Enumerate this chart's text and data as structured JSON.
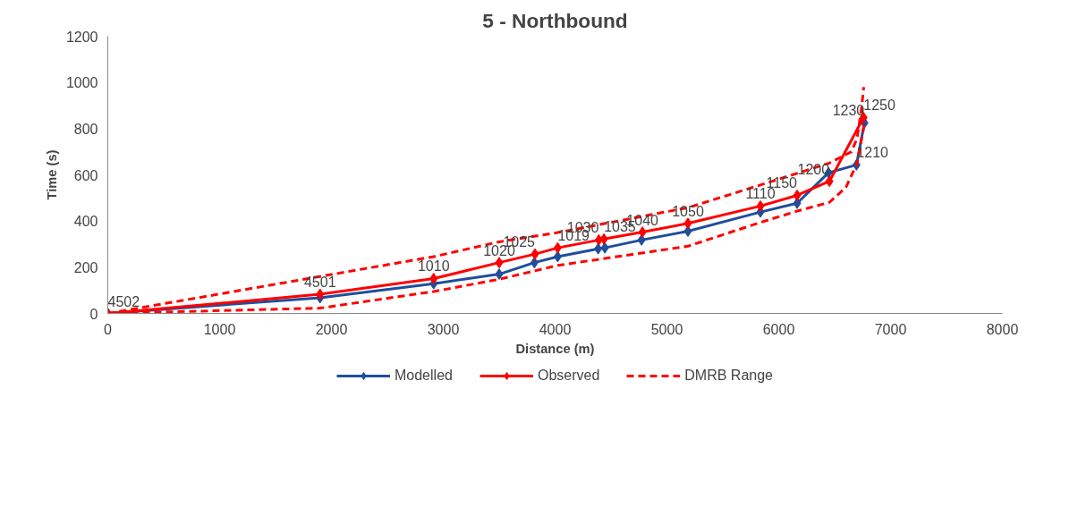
{
  "chart_data": {
    "type": "line",
    "title": "5 - Northbound",
    "xlabel": "Distance (m)",
    "ylabel": "Time (s)",
    "xlim": [
      0,
      8000
    ],
    "ylim": [
      0,
      1200
    ],
    "xticks": [
      0,
      1000,
      2000,
      3000,
      4000,
      5000,
      6000,
      7000,
      8000
    ],
    "yticks": [
      0,
      200,
      400,
      600,
      800,
      1000,
      1200
    ],
    "grid": false,
    "legend": "bottom",
    "series": [
      {
        "name": "Modelled",
        "color": "#1f4e9c",
        "marker": "diamond",
        "line_style": "solid",
        "x": [
          0,
          1898,
          2914,
          3500,
          3815,
          4023,
          4385,
          4445,
          4773,
          5188,
          5836,
          6164,
          6445,
          6695,
          6766
        ],
        "values": [
          0,
          68,
          129,
          170,
          220,
          246,
          280,
          284,
          318,
          356,
          439,
          477,
          609,
          643,
          825
        ]
      },
      {
        "name": "Observed",
        "color": "#ff0000",
        "marker": "diamond",
        "line_style": "solid",
        "x": [
          0,
          1898,
          2914,
          3500,
          3820,
          4023,
          4391,
          4437,
          4781,
          5188,
          5836,
          6164,
          6453,
          6758
        ],
        "values": [
          0,
          83,
          151,
          220,
          257,
          284,
          318,
          322,
          352,
          390,
          465,
          511,
          572,
          848
        ]
      },
      {
        "name": "DMRB Range",
        "color": "#ff0000",
        "marker": "none",
        "line_style": "dashed",
        "x": [
          0,
          1898,
          2914,
          3500,
          4023,
          5188,
          5836,
          6453,
          6650,
          6700,
          6740,
          6760
        ],
        "values": [
          0,
          160,
          246,
          310,
          350,
          458,
          556,
          651,
          700,
          757,
          886,
          980
        ]
      },
      {
        "color": "#ff0000",
        "marker": "none",
        "line_style": "dashed",
        "x": [
          0,
          1898,
          2914,
          3500,
          4023,
          5188,
          5836,
          6164,
          6453,
          6600,
          6700,
          6766
        ],
        "values": [
          0,
          23,
          95,
          148,
          208,
          291,
          394,
          443,
          481,
          545,
          650,
          820
        ]
      }
    ],
    "annotations": [
      {
        "text": "4502",
        "x": 0,
        "y": 0
      },
      {
        "text": "4501",
        "x": 1898,
        "y": 83
      },
      {
        "text": "1010",
        "x": 2914,
        "y": 151
      },
      {
        "text": "1020",
        "x": 3500,
        "y": 220
      },
      {
        "text": "1025",
        "x": 3820,
        "y": 257
      },
      {
        "text": "1019",
        "x": 4023,
        "y": 284
      },
      {
        "text": "1030",
        "x": 4391,
        "y": 318
      },
      {
        "text": "1035",
        "x": 4437,
        "y": 322
      },
      {
        "text": "1040",
        "x": 4781,
        "y": 352
      },
      {
        "text": "1050",
        "x": 5188,
        "y": 390
      },
      {
        "text": "1110",
        "x": 5836,
        "y": 465
      },
      {
        "text": "1150",
        "x": 6164,
        "y": 511
      },
      {
        "text": "1200",
        "x": 6453,
        "y": 572
      },
      {
        "text": "1210",
        "x": 6695,
        "y": 643
      },
      {
        "text": "1230",
        "x": 6766,
        "y": 825
      },
      {
        "text": "1250",
        "x": 6758,
        "y": 848
      }
    ]
  }
}
